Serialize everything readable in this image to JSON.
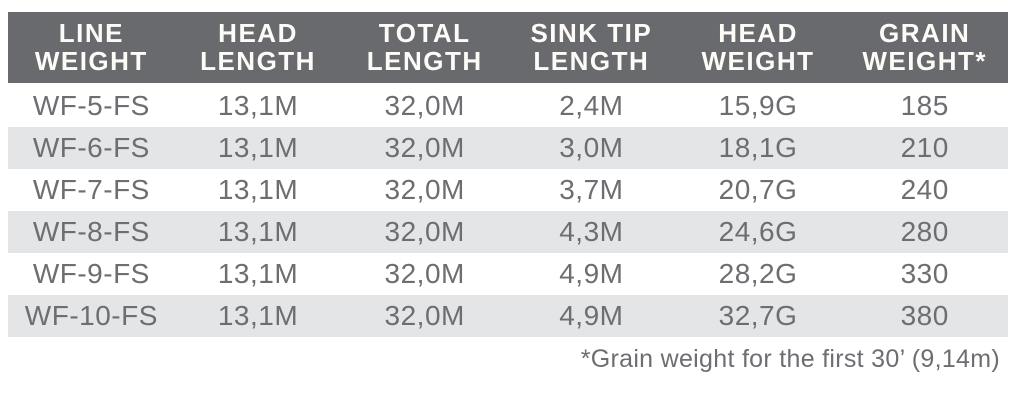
{
  "table": {
    "columns": [
      {
        "label": "LINE\nWEIGHT"
      },
      {
        "label": "HEAD\nLENGTH"
      },
      {
        "label": "TOTAL\nLENGTH"
      },
      {
        "label": "SINK TIP\nLENGTH"
      },
      {
        "label": "HEAD\nWEIGHT"
      },
      {
        "label": "GRAIN\nWEIGHT*"
      }
    ],
    "rows": [
      {
        "cells": [
          "WF-5-FS",
          "13,1M",
          "32,0M",
          "2,4M",
          "15,9G",
          "185"
        ]
      },
      {
        "cells": [
          "WF-6-FS",
          "13,1M",
          "32,0M",
          "3,0M",
          "18,1G",
          "210"
        ]
      },
      {
        "cells": [
          "WF-7-FS",
          "13,1M",
          "32,0M",
          "3,7M",
          "20,7G",
          "240"
        ]
      },
      {
        "cells": [
          "WF-8-FS",
          "13,1M",
          "32,0M",
          "4,3M",
          "24,6G",
          "280"
        ]
      },
      {
        "cells": [
          "WF-9-FS",
          "13,1M",
          "32,0M",
          "4,9M",
          "28,2G",
          "330"
        ]
      },
      {
        "cells": [
          "WF-10-FS",
          "13,1M",
          "32,0M",
          "4,9M",
          "32,7G",
          "380"
        ]
      }
    ],
    "footnote": "*Grain weight for the first 30’ (9,14m)"
  },
  "colors": {
    "header_bg": "#696a6e",
    "header_text": "#fdfbf7",
    "stripe_bg": "#e4e5e6",
    "body_text": "#6d6e71"
  }
}
